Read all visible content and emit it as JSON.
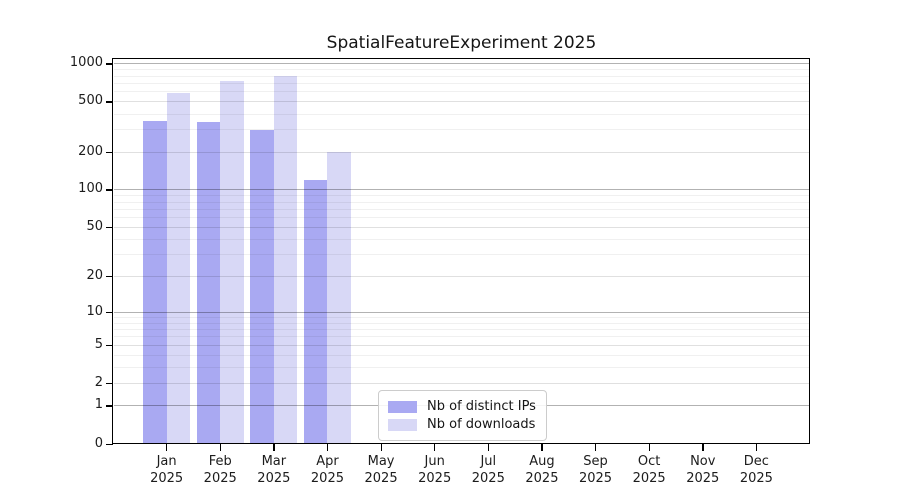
{
  "chart": {
    "title": "SpatialFeatureExperiment 2025"
  },
  "legend": {
    "items": [
      {
        "label": "Nb of distinct IPs",
        "color": "#a9a9f2"
      },
      {
        "label": "Nb of downloads",
        "color": "#d8d8f6"
      }
    ]
  },
  "y_axis": {
    "tick_labels": [
      "0",
      "1",
      "2",
      "5",
      "10",
      "20",
      "50",
      "100",
      "200",
      "500",
      "1000"
    ]
  },
  "x_axis": {
    "months": [
      {
        "month": "Jan",
        "year": "2025"
      },
      {
        "month": "Feb",
        "year": "2025"
      },
      {
        "month": "Mar",
        "year": "2025"
      },
      {
        "month": "Apr",
        "year": "2025"
      },
      {
        "month": "May",
        "year": "2025"
      },
      {
        "month": "Jun",
        "year": "2025"
      },
      {
        "month": "Jul",
        "year": "2025"
      },
      {
        "month": "Aug",
        "year": "2025"
      },
      {
        "month": "Sep",
        "year": "2025"
      },
      {
        "month": "Oct",
        "year": "2025"
      },
      {
        "month": "Nov",
        "year": "2025"
      },
      {
        "month": "Dec",
        "year": "2025"
      }
    ]
  },
  "chart_data": {
    "type": "bar",
    "title": "SpatialFeatureExperiment 2025",
    "categories": [
      "Jan 2025",
      "Feb 2025",
      "Mar 2025",
      "Apr 2025",
      "May 2025",
      "Jun 2025",
      "Jul 2025",
      "Aug 2025",
      "Sep 2025",
      "Oct 2025",
      "Nov 2025",
      "Dec 2025"
    ],
    "series": [
      {
        "name": "Nb of distinct IPs",
        "color": "#a9a9f2",
        "values": [
          351,
          349,
          301,
          119,
          0,
          0,
          0,
          0,
          0,
          0,
          0,
          0
        ]
      },
      {
        "name": "Nb of downloads",
        "color": "#d8d8f6",
        "values": [
          585,
          728,
          797,
          199,
          0,
          0,
          0,
          0,
          0,
          0,
          0,
          0
        ]
      }
    ],
    "xlabel": "",
    "ylabel": "",
    "yscale": "log10(value+1)",
    "ylim": [
      0,
      1090
    ],
    "yticks": [
      0,
      1,
      2,
      5,
      10,
      20,
      50,
      100,
      200,
      500,
      1000
    ],
    "minor_gridlines": [
      3,
      4,
      6,
      7,
      8,
      9,
      30,
      40,
      60,
      70,
      80,
      90,
      300,
      400,
      600,
      700,
      800,
      900
    ],
    "grid": "both-horizontal",
    "legend_position": "lower center"
  }
}
